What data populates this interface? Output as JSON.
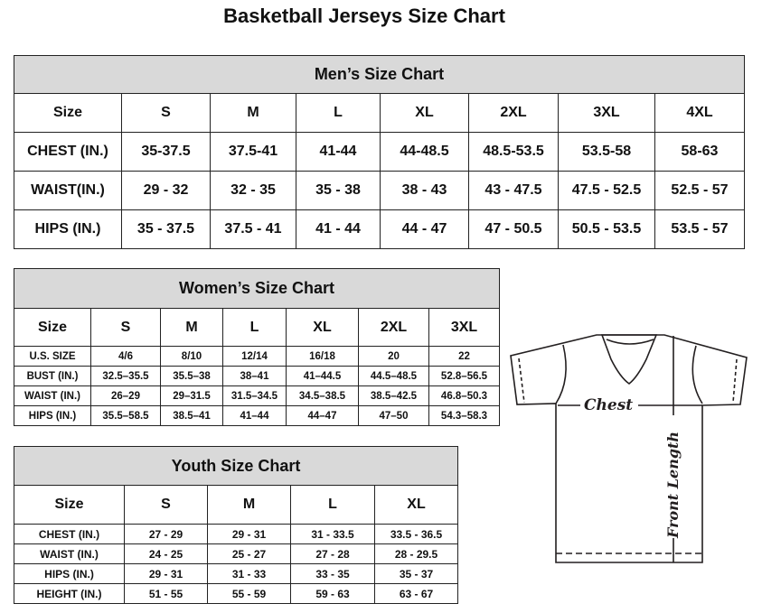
{
  "title": "Basketball Jerseys Size Chart",
  "men": {
    "title": "Men’s Size Chart",
    "header": [
      "Size",
      "S",
      "M",
      "L",
      "XL",
      "2XL",
      "3XL",
      "4XL"
    ],
    "rows": [
      [
        "CHEST (IN.)",
        "35-37.5",
        "37.5-41",
        "41-44",
        "44-48.5",
        "48.5-53.5",
        "53.5-58",
        "58-63"
      ],
      [
        "WAIST(IN.)",
        "29 - 32",
        "32 - 35",
        "35 - 38",
        "38 - 43",
        "43 - 47.5",
        "47.5 - 52.5",
        "52.5 - 57"
      ],
      [
        "HIPS (IN.)",
        "35 - 37.5",
        "37.5 - 41",
        "41 - 44",
        "44 - 47",
        "47 - 50.5",
        "50.5 - 53.5",
        "53.5 - 57"
      ]
    ]
  },
  "women": {
    "title": "Women’s Size Chart",
    "header": [
      "Size",
      "S",
      "M",
      "L",
      "XL",
      "2XL",
      "3XL"
    ],
    "rows": [
      [
        "U.S. SIZE",
        "4/6",
        "8/10",
        "12/14",
        "16/18",
        "20",
        "22"
      ],
      [
        "BUST (IN.)",
        "32.5–35.5",
        "35.5–38",
        "38–41",
        "41–44.5",
        "44.5–48.5",
        "52.8–56.5"
      ],
      [
        "WAIST (IN.)",
        "26–29",
        "29–31.5",
        "31.5–34.5",
        "34.5–38.5",
        "38.5–42.5",
        "46.8–50.3"
      ],
      [
        "HIPS (IN.)",
        "35.5–58.5",
        "38.5–41",
        "41–44",
        "44–47",
        "47–50",
        "54.3–58.3"
      ]
    ]
  },
  "youth": {
    "title": "Youth Size Chart",
    "header": [
      "Size",
      "S",
      "M",
      "L",
      "XL"
    ],
    "rows": [
      [
        "CHEST (IN.)",
        "27 - 29",
        "29 - 31",
        "31 - 33.5",
        "33.5 - 36.5"
      ],
      [
        "WAIST (IN.)",
        "24 - 25",
        "25 - 27",
        "27 - 28",
        "28 - 29.5"
      ],
      [
        "HIPS (IN.)",
        "29 - 31",
        "31 - 33",
        "33 - 35",
        "35 - 37"
      ],
      [
        "HEIGHT (IN.)",
        "51 - 55",
        "55 - 59",
        "59 - 63",
        "63 - 67"
      ]
    ]
  },
  "diagram": {
    "chest_label": "Chest",
    "length_label": "Front Length"
  }
}
